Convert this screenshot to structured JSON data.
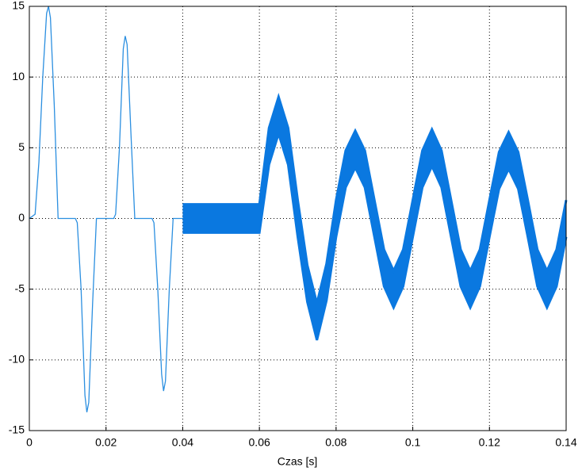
{
  "chart_data": {
    "type": "line",
    "xlabel": "Czas [s]",
    "xlim": [
      0,
      0.14
    ],
    "xticks": [
      0,
      0.02,
      0.04,
      0.06,
      0.08,
      0.1,
      0.12,
      0.14
    ],
    "ylim": [
      -15,
      15
    ],
    "yticks": [
      -15,
      -10,
      -5,
      0,
      5,
      10,
      15
    ],
    "grid": true,
    "fill_between": [
      1,
      2
    ],
    "series": [
      {
        "color": "#2b8fe0",
        "x": [
          0,
          0.0015,
          0.0025,
          0.0035,
          0.0045,
          0.005,
          0.0055,
          0.0065,
          0.0075,
          0.012,
          0.0125,
          0.0135,
          0.0145,
          0.015,
          0.0155,
          0.0165,
          0.0175,
          0.022,
          0.0225,
          0.0235,
          0.0245,
          0.025,
          0.0255,
          0.0265,
          0.0275,
          0.032,
          0.0325,
          0.0335,
          0.0345,
          0.035,
          0.0355,
          0.0365,
          0.0375,
          0.04
        ],
        "values": [
          0,
          0.3,
          4,
          10,
          14.5,
          15,
          14.2,
          8,
          0,
          0,
          -0.3,
          -5,
          -12.5,
          -13.7,
          -13,
          -6,
          0,
          0,
          0.3,
          5,
          12,
          12.9,
          12.3,
          6,
          0,
          0,
          -0.3,
          -5,
          -11,
          -12.2,
          -11.5,
          -5,
          0,
          0
        ]
      },
      {
        "color": "#0a78e0",
        "x": [
          0.04,
          0.0425,
          0.045,
          0.0475,
          0.05,
          0.0525,
          0.055,
          0.0575,
          0.06,
          0.0625,
          0.065,
          0.0675,
          0.07,
          0.0725,
          0.075,
          0.0775,
          0.08,
          0.0825,
          0.085,
          0.0875,
          0.09,
          0.0925,
          0.095,
          0.0975,
          0.1,
          0.1025,
          0.105,
          0.1075,
          0.11,
          0.1125,
          0.115,
          0.1175,
          0.12,
          0.1225,
          0.125,
          0.1275,
          0.13,
          0.1325,
          0.135,
          0.1375,
          0.14
        ],
        "values": [
          1,
          1,
          1,
          1,
          1,
          1,
          1,
          1,
          1,
          6.4,
          8.6,
          6.4,
          1.3,
          -3.3,
          -6,
          -3.2,
          1.3,
          4.8,
          6.2,
          4.8,
          1.3,
          -2.2,
          -3.7,
          -2.2,
          1.3,
          4.8,
          6.3,
          4.8,
          1.3,
          -2.2,
          -3.7,
          -2.2,
          1.3,
          4.7,
          6.1,
          4.7,
          1.3,
          -2.2,
          -3.7,
          -2.2,
          1.3
        ]
      },
      {
        "color": "#0a78e0",
        "x": [
          0.04,
          0.0425,
          0.045,
          0.0475,
          0.05,
          0.0525,
          0.055,
          0.0575,
          0.06,
          0.0625,
          0.065,
          0.0675,
          0.07,
          0.0725,
          0.075,
          0.0775,
          0.08,
          0.0825,
          0.085,
          0.0875,
          0.09,
          0.0925,
          0.095,
          0.0975,
          0.1,
          0.1025,
          0.105,
          0.1075,
          0.11,
          0.1125,
          0.115,
          0.1175,
          0.12,
          0.1225,
          0.125,
          0.1275,
          0.13,
          0.1325,
          0.135,
          0.1375,
          0.14
        ],
        "values": [
          -1,
          -1,
          -1,
          -1,
          -1,
          -1,
          -1,
          -1,
          -1,
          3.8,
          6,
          3.8,
          -1.3,
          -5.9,
          -8.6,
          -5.8,
          -1.3,
          2.2,
          3.6,
          2.2,
          -1.3,
          -4.8,
          -6.3,
          -4.8,
          -1.3,
          2.2,
          3.7,
          2.2,
          -1.3,
          -4.8,
          -6.3,
          -4.8,
          -1.3,
          2.1,
          3.5,
          2.1,
          -1.3,
          -4.8,
          -6.3,
          -4.8,
          -1.3
        ]
      }
    ]
  }
}
